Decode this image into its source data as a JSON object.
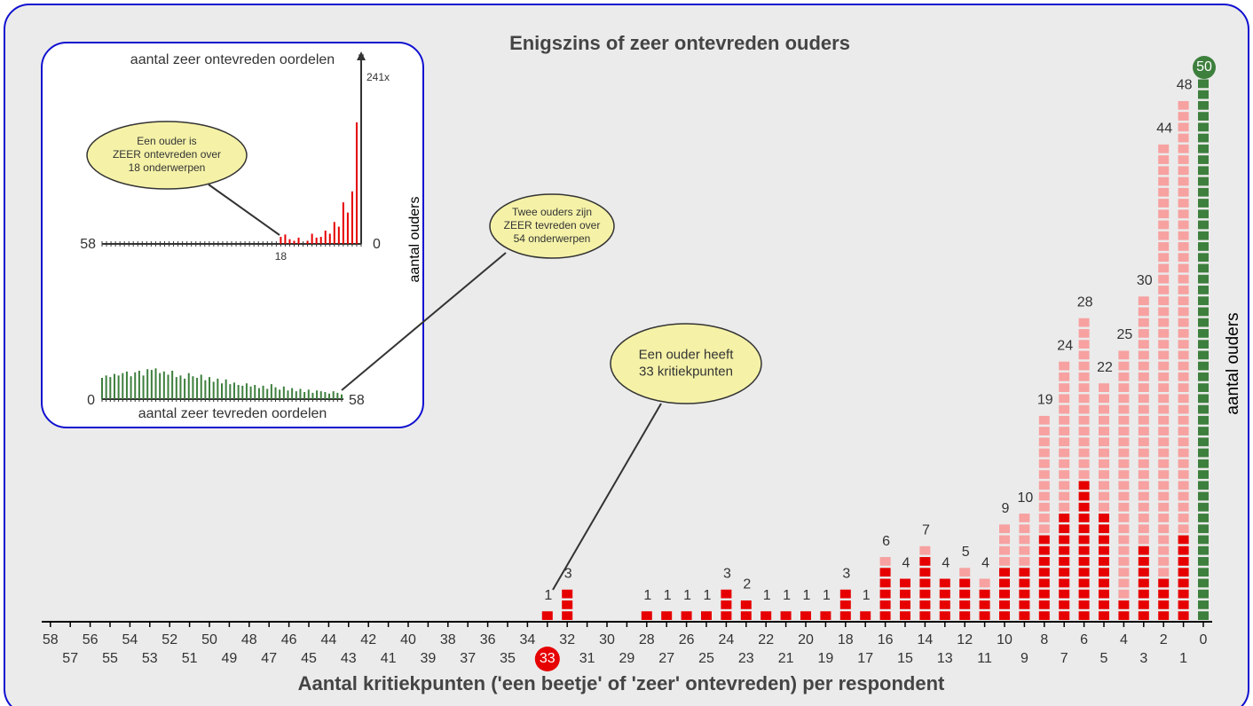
{
  "chart_data": {
    "type": "bar",
    "title": "Enigszins of zeer ontevreden ouders",
    "x_label": "Aantal kritiekpunten ('een beetje' of 'zeer' ontevreden) per respondent",
    "y_label": "aantal ouders",
    "categories": [
      0,
      1,
      2,
      3,
      4,
      5,
      6,
      7,
      8,
      9,
      10,
      11,
      12,
      13,
      14,
      15,
      16,
      17,
      18,
      19,
      20,
      21,
      22,
      23,
      24,
      25,
      26,
      27,
      28,
      29,
      30,
      31,
      32,
      33,
      34,
      35,
      36,
      37,
      38,
      39,
      40,
      41,
      42,
      43,
      44,
      45,
      46,
      47,
      48,
      49,
      50,
      51,
      52,
      53,
      54,
      55,
      56,
      57,
      58
    ],
    "series": [
      {
        "color": "#e60000",
        "values": [
          0,
          8,
          4,
          7,
          2,
          10,
          13,
          10,
          8,
          5,
          5,
          3,
          4,
          4,
          6,
          4,
          5,
          1,
          3,
          1,
          1,
          1,
          1,
          2,
          3,
          1,
          1,
          1,
          1,
          0,
          0,
          0,
          3,
          1,
          0,
          0,
          0,
          0,
          0,
          0,
          0,
          0,
          0,
          0,
          0,
          0,
          0,
          0,
          0,
          0,
          0,
          0,
          0,
          0,
          0,
          0,
          0,
          0,
          0
        ]
      },
      {
        "color": "#f7a1a1",
        "values": [
          0,
          40,
          40,
          23,
          23,
          12,
          15,
          14,
          11,
          5,
          4,
          1,
          1,
          0,
          1,
          0,
          1,
          0,
          0,
          0,
          0,
          0,
          0,
          0,
          0,
          0,
          0,
          0,
          0,
          0,
          0,
          0,
          0,
          0,
          0,
          0,
          0,
          0,
          0,
          0,
          0,
          0,
          0,
          0,
          0,
          0,
          0,
          0,
          0,
          0,
          0,
          0,
          0,
          0,
          0,
          0,
          0,
          0,
          0
        ]
      },
      {
        "color": "#3d7f3d",
        "values": [
          50,
          0,
          0,
          0,
          0,
          0,
          0,
          0,
          0,
          0,
          0,
          0,
          0,
          0,
          0,
          0,
          0,
          0,
          0,
          0,
          0,
          0,
          0,
          0,
          0,
          0,
          0,
          0,
          0,
          0,
          0,
          0,
          0,
          0,
          0,
          0,
          0,
          0,
          0,
          0,
          0,
          0,
          0,
          0,
          0,
          0,
          0,
          0,
          0,
          0,
          0,
          0,
          0,
          0,
          0,
          0,
          0,
          0,
          0
        ]
      }
    ],
    "totals": [
      50,
      48,
      44,
      30,
      25,
      22,
      28,
      24,
      19,
      10,
      9,
      4,
      5,
      4,
      7,
      4,
      6,
      1,
      3,
      1,
      1,
      1,
      1,
      2,
      3,
      1,
      1,
      1,
      1,
      null,
      null,
      null,
      3,
      1,
      null,
      null,
      null,
      null,
      null,
      null,
      null,
      null,
      null,
      null,
      null,
      null,
      null,
      null,
      null,
      null,
      null,
      null,
      null,
      null,
      null,
      null,
      null,
      null,
      null
    ],
    "ylim": [
      0,
      50
    ],
    "highlight": 33,
    "highlight_color": "#e60000",
    "annotations": [
      {
        "lines": [
          "Een ouder is",
          "ZEER ontevreden over",
          "18 onderwerpen"
        ]
      },
      {
        "lines": [
          "Twee ouders zijn",
          "ZEER tevreden over",
          "54 onderwerpen"
        ]
      },
      {
        "lines": [
          "Een ouder heeft",
          "33 kritiekpunten"
        ]
      }
    ],
    "inset": {
      "top_title": "aantal zeer ontevreden oordelen",
      "bottom_title": "aantal zeer tevreden oordelen",
      "y_label": "aantal ouders",
      "unsatisfied": {
        "color": "#e60000",
        "values": [
          241,
          155,
          67,
          40,
          53,
          22,
          28,
          13,
          17,
          9,
          8,
          13,
          4,
          0,
          8,
          4,
          6,
          12,
          9,
          0,
          0,
          0,
          0,
          0,
          0,
          0,
          0,
          0,
          0,
          0,
          0,
          0,
          0,
          0,
          0,
          0,
          0,
          0,
          0,
          0,
          0,
          0,
          0,
          0,
          0,
          0,
          0,
          0,
          0,
          0,
          0,
          0,
          0,
          0,
          0,
          0,
          0,
          0,
          0
        ],
        "ylim": [
          0,
          241
        ],
        "yticks": [
          {
            "value": 241,
            "label": "241x"
          }
        ],
        "xticks": [
          58,
          18,
          0
        ]
      },
      "satisfied": {
        "color": "#3d7f3d",
        "values": [
          27,
          30,
          28,
          32,
          30,
          33,
          35,
          29,
          34,
          36,
          30,
          38,
          37,
          39,
          33,
          35,
          31,
          36,
          28,
          30,
          26,
          33,
          29,
          27,
          31,
          24,
          28,
          22,
          26,
          20,
          25,
          19,
          21,
          18,
          17,
          20,
          16,
          18,
          14,
          17,
          13,
          19,
          15,
          12,
          16,
          11,
          14,
          10,
          13,
          9,
          12,
          8,
          11,
          10,
          9,
          7,
          10,
          8,
          6
        ],
        "ylim": [
          0,
          45
        ],
        "xticks": [
          0,
          58
        ]
      }
    }
  }
}
